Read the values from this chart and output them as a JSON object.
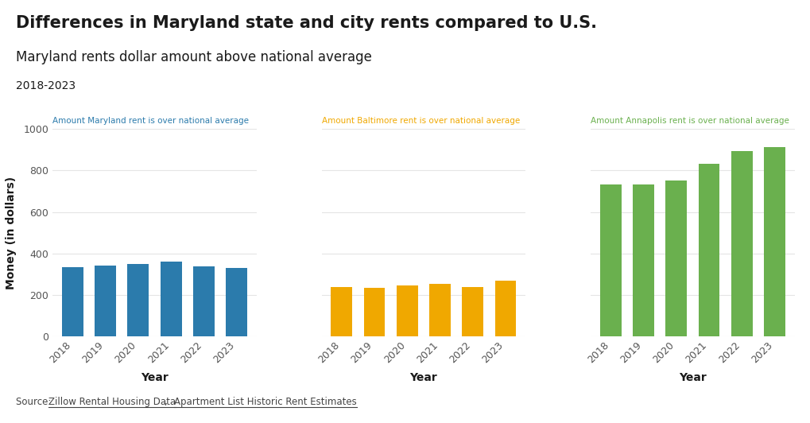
{
  "title": "Differences in Maryland state and city rents compared to U.S.",
  "subtitle": "Maryland rents dollar amount above national average",
  "date_range": "2018-2023",
  "years": [
    "2018",
    "2019",
    "2020",
    "2021",
    "2022",
    "2023"
  ],
  "maryland_values": [
    335,
    342,
    350,
    360,
    337,
    330
  ],
  "baltimore_values": [
    237,
    233,
    247,
    252,
    237,
    268
  ],
  "annapolis_values": [
    733,
    733,
    750,
    833,
    893,
    912
  ],
  "maryland_color": "#2b7bac",
  "baltimore_color": "#f0a800",
  "annapolis_color": "#6ab04e",
  "maryland_label": "Amount Maryland rent is over national average",
  "baltimore_label": "Amount Baltimore rent is over national average",
  "annapolis_label": "Amount Annapolis rent is over national average",
  "ylabel": "Money (in dollars)",
  "xlabel": "Year",
  "ylim": [
    0,
    1000
  ],
  "yticks": [
    0,
    200,
    400,
    600,
    800,
    1000
  ],
  "background_color": "#ffffff",
  "source_prefix": "Source: ",
  "source_link1": "Zillow Rental Housing Data",
  "source_sep": ", ",
  "source_link2": "Apartment List Historic Rent Estimates",
  "title_fontsize": 15,
  "subtitle_fontsize": 12,
  "date_fontsize": 10,
  "label_fontsize": 7.5,
  "tick_fontsize": 9,
  "axis_label_fontsize": 10,
  "source_fontsize": 8.5,
  "grid_color": "#e5e5e5",
  "text_color": "#1a1a1a",
  "tick_color": "#555555"
}
